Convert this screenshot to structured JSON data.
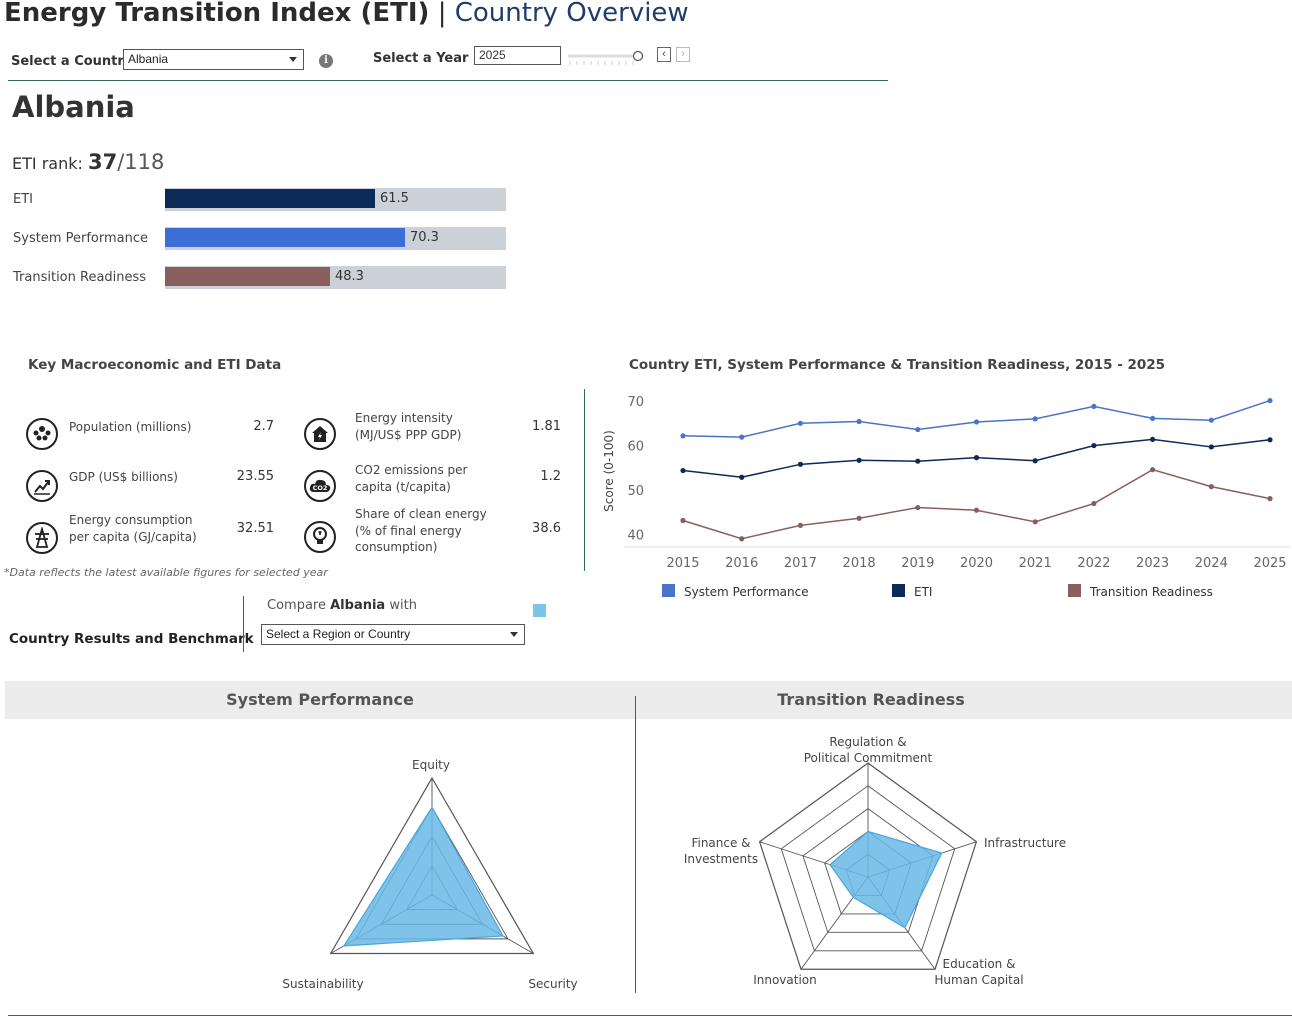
{
  "header": {
    "title_main": "Energy Transition Index (ETI)",
    "title_sep": "|",
    "title_sub": "Country Overview"
  },
  "controls": {
    "country_label": "Select a Country",
    "country_value": "Albania",
    "year_label": "Select a Year",
    "year_value": "2025",
    "prev_glyph": "‹",
    "next_glyph": "›",
    "info_glyph": "i"
  },
  "country": {
    "name": "Albania",
    "rank_label": "ETI rank:",
    "rank": "37",
    "rank_total": "/118"
  },
  "scores": [
    {
      "label": "ETI",
      "value": 61.5,
      "display": "61.5",
      "color": "#0b2a57"
    },
    {
      "label": "System Performance",
      "value": 70.3,
      "display": "70.3",
      "color": "#3b6fd6"
    },
    {
      "label": "Transition Readiness",
      "value": 48.3,
      "display": "48.3",
      "color": "#8b5e5e"
    }
  ],
  "macro": {
    "title": "Key Macroeconomic and ETI Data",
    "left": [
      {
        "label1": "Population (millions)",
        "label2": "",
        "value": "2.7",
        "icon": "population-icon"
      },
      {
        "label1": "GDP (US$ billions)",
        "label2": "",
        "value": "23.55",
        "icon": "gdp-chart-icon"
      },
      {
        "label1": "Energy consumption",
        "label2": "per capita (GJ/capita)",
        "value": "32.51",
        "icon": "power-tower-icon"
      }
    ],
    "right": [
      {
        "label1": "Energy intensity",
        "label2": "(MJ/US$ PPP GDP)",
        "label3": "",
        "value": "1.81",
        "icon": "energy-house-icon"
      },
      {
        "label1": "CO2 emissions per",
        "label2": "capita (t/capita)",
        "label3": "",
        "value": "1.2",
        "icon": "co2-cloud-icon"
      },
      {
        "label1": "Share of clean energy",
        "label2": "(% of final energy",
        "label3": "consumption)",
        "value": "38.6",
        "icon": "lightbulb-icon"
      }
    ],
    "note": "*Data reflects the latest available figures for selected year"
  },
  "compare": {
    "section_title": "Country Results and Benchmark",
    "compare_prefix": "Compare",
    "compare_country": "Albania",
    "compare_suffix": "with",
    "select_placeholder": "Select a Region or Country",
    "swatch_color": "#7fc3ea"
  },
  "chart_data": [
    {
      "type": "line",
      "title": "Country ETI, System Performance & Transition Readiness, 2015 - 2025",
      "ylabel": "Score (0-100)",
      "ylim": [
        37,
        72
      ],
      "yticks": [
        40,
        50,
        60,
        70
      ],
      "x": [
        "2015",
        "2016",
        "2017",
        "2018",
        "2019",
        "2020",
        "2021",
        "2022",
        "2023",
        "2024",
        "2025"
      ],
      "series": [
        {
          "name": "System Performance",
          "color": "#4a73c9",
          "values": [
            62.4,
            62.1,
            65.2,
            65.6,
            63.8,
            65.5,
            66.2,
            69.0,
            66.3,
            65.9,
            70.3
          ]
        },
        {
          "name": "ETI",
          "color": "#0b2a57",
          "values": [
            54.6,
            53.1,
            56.0,
            56.9,
            56.7,
            57.5,
            56.8,
            60.2,
            61.6,
            59.9,
            61.5
          ]
        },
        {
          "name": "Transition Readiness",
          "color": "#8b5e5e",
          "values": [
            43.4,
            39.3,
            42.3,
            43.9,
            46.3,
            45.7,
            43.1,
            47.2,
            54.8,
            51.0,
            48.3
          ]
        }
      ],
      "grid": false,
      "legend": "bottom"
    },
    {
      "type": "radar",
      "title": "System Performance",
      "axes": [
        "Equity",
        "Security",
        "Sustainability"
      ],
      "values": [
        0.75,
        0.7,
        0.87
      ],
      "max": 1
    },
    {
      "type": "radar",
      "title": "Transition Readiness",
      "axes": [
        "Regulation & Political Commitment",
        "Infrastructure",
        "Education & Human Capital",
        "Innovation",
        "Finance & Investments"
      ],
      "values": [
        0.4,
        0.68,
        0.55,
        0.22,
        0.35
      ],
      "max": 1
    }
  ],
  "radar_labels": {
    "sp": {
      "top": "Equity",
      "right": "Security",
      "left": "Sustainability"
    },
    "tr": {
      "top1": "Regulation &",
      "top2": "Political Commitment",
      "right": "Infrastructure",
      "br1": "Education &",
      "br2": "Human Capital",
      "bl": "Innovation",
      "left1": "Finance &",
      "left2": "Investments"
    }
  }
}
